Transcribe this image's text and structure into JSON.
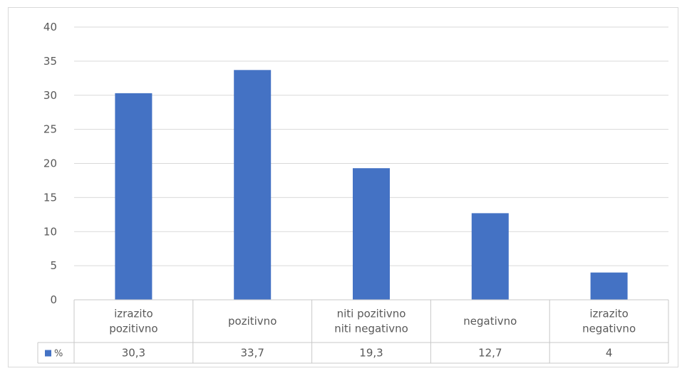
{
  "chart_data": {
    "type": "bar",
    "categories": [
      [
        "izrazito",
        "pozitivno"
      ],
      [
        "pozitivno"
      ],
      [
        "niti pozitivno",
        "niti negativno"
      ],
      [
        "negativno"
      ],
      [
        "izrazito",
        "negativno"
      ]
    ],
    "series": [
      {
        "name": "%",
        "values": [
          30.3,
          33.7,
          19.3,
          12.7,
          4
        ],
        "labels": [
          "30,3",
          "33,7",
          "19,3",
          "12,7",
          "4"
        ],
        "color": "#4472c4"
      }
    ],
    "ylim": [
      0,
      40
    ],
    "yticks": [
      0,
      5,
      10,
      15,
      20,
      25,
      30,
      35,
      40
    ],
    "grid": true,
    "legend": "data-table",
    "data_table": true,
    "title": "",
    "xlabel": "",
    "ylabel": ""
  }
}
